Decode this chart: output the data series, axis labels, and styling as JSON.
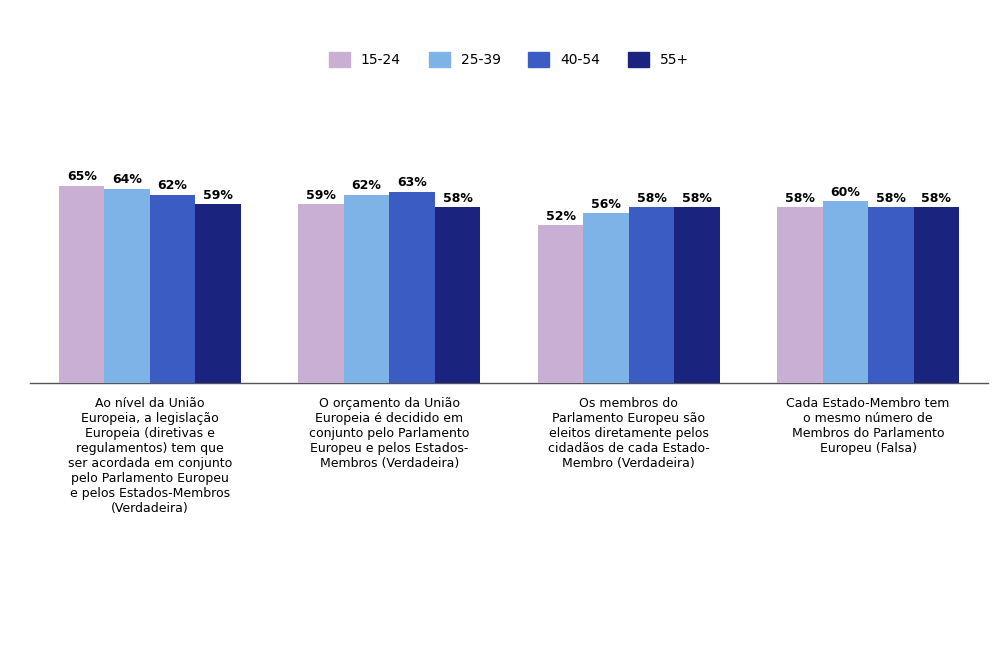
{
  "categories": [
    "Ao nível da União\nEuropeia, a legislação\nEuropeia (diretivas e\nregulamentos) tem que\nser acordada em conjunto\npelo Parlamento Europeu\ne pelos Estados-Membros\n(Verdadeira)",
    "O orçamento da União\nEuropeia é decidido em\nconjunto pelo Parlamento\nEuropeu e pelos Estados-\nMembros (Verdadeira)",
    "Os membros do\nParlamento Europeu são\neleitos diretamente pelos\ncidadãos de cada Estado-\nMembro (Verdadeira)",
    "Cada Estado-Membro tem\no mesmo número de\nMembros do Parlamento\nEuropeu (Falsa)"
  ],
  "series": {
    "15-24": [
      65,
      59,
      52,
      58
    ],
    "25-39": [
      64,
      62,
      56,
      60
    ],
    "40-54": [
      62,
      63,
      58,
      58
    ],
    "55+": [
      59,
      58,
      58,
      58
    ]
  },
  "colors": {
    "15-24": "#c9afd4",
    "25-39": "#7eb3e8",
    "40-54": "#3b5cc2",
    "55+": "#1a237e"
  },
  "legend_labels": [
    "15-24",
    "25-39",
    "40-54",
    "55+"
  ],
  "ylim": [
    0,
    100
  ],
  "bar_width": 0.19,
  "label_fontsize": 9,
  "tick_label_fontsize": 9,
  "legend_fontsize": 10,
  "background_color": "#ffffff"
}
